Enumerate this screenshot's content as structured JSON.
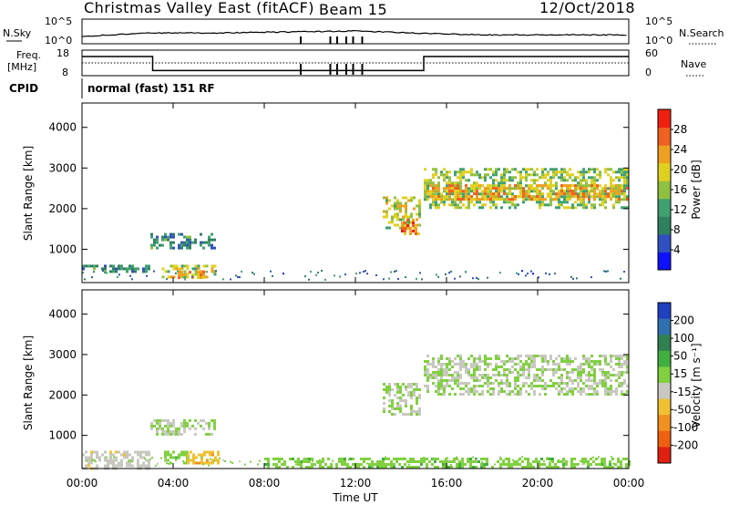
{
  "header": {
    "title": "Christmas Valley East (fitACF)",
    "beam": "Beam 15",
    "date": "12/Oct/2018"
  },
  "noise_panel": {
    "left_label": "N.Sky",
    "right_label": "N.Search",
    "left_ticks": [
      "10^5",
      "10^0"
    ],
    "right_ticks": [
      "10^5",
      "10^0"
    ]
  },
  "freq_panel": {
    "left_label_1": "Freq.",
    "left_label_2": "[MHz]",
    "left_ticks": [
      "18",
      "8"
    ],
    "right_ticks": [
      "60",
      "0"
    ],
    "right_label": "Nave"
  },
  "cpid": {
    "label": "CPID",
    "value": "normal (fast) 151 RF"
  },
  "power_panel": {
    "ylabel": "Slant Range [km]",
    "yticks": [
      "1000",
      "2000",
      "3000",
      "4000"
    ],
    "colorbar_label": "Power [dB]",
    "colorbar_ticks": [
      "4",
      "8",
      "12",
      "16",
      "20",
      "24",
      "28"
    ],
    "colorbar_colors": [
      "#1010ff",
      "#3050c0",
      "#308060",
      "#40a070",
      "#90c040",
      "#e0d020",
      "#f0a020",
      "#f06020",
      "#f02010"
    ]
  },
  "velocity_panel": {
    "ylabel": "Slant Range [km]",
    "yticks": [
      "1000",
      "2000",
      "3000",
      "4000"
    ],
    "colorbar_label": "Velocity [m s⁻¹]",
    "colorbar_ticks": [
      "200",
      "100",
      "50",
      "15",
      "-15",
      "-50",
      "-100",
      "-200"
    ],
    "colorbar_colors": [
      "#2040c0",
      "#3070b0",
      "#308050",
      "#40b040",
      "#80d040",
      "#c8c8c0",
      "#f0c030",
      "#f09020",
      "#f06010",
      "#e02010"
    ]
  },
  "xaxis": {
    "ticks": [
      "00:00",
      "04:00",
      "08:00",
      "12:00",
      "16:00",
      "20:00",
      "00:00"
    ],
    "label": "Time UT"
  },
  "chart_data": [
    {
      "type": "line",
      "title": "Noise (N.Sky / N.Search)",
      "x": [
        0,
        3,
        6,
        9,
        12,
        15,
        18,
        21,
        24
      ],
      "series": [
        {
          "values": [
            1.5,
            2.2,
            2.2,
            2.4,
            2.6,
            2.1,
            1.8,
            1.8,
            1.8
          ]
        }
      ],
      "xlim": [
        0,
        24
      ],
      "yscale": "log"
    },
    {
      "type": "line",
      "title": "Frequency / Nave",
      "x": [
        0,
        3.1,
        3.1,
        15.0,
        15.0,
        24
      ],
      "series": [
        {
          "name": "Freq. [MHz]",
          "values": [
            15.5,
            15.5,
            10,
            10,
            15.5,
            15.5
          ]
        },
        {
          "name": "Nave",
          "values": [
            30,
            30,
            30,
            30,
            30,
            30
          ]
        }
      ],
      "xlim": [
        0,
        24
      ],
      "ylim": [
        8,
        18
      ]
    },
    {
      "type": "heatmap",
      "title": "Power [dB]",
      "xlabel": "Time UT",
      "ylabel": "Slant Range [km]",
      "xlim": [
        0,
        24
      ],
      "ylim": [
        180,
        4600
      ],
      "regions": [
        {
          "t": [
            0.0,
            3.0
          ],
          "r": [
            430,
            620
          ],
          "value": 10
        },
        {
          "t": [
            3.0,
            5.8
          ],
          "r": [
            1020,
            1400
          ],
          "value": 10
        },
        {
          "t": [
            3.5,
            6.0
          ],
          "r": [
            290,
            620
          ],
          "value": 18
        },
        {
          "t": [
            4.2,
            5.4
          ],
          "r": [
            330,
            470
          ],
          "value": 24
        },
        {
          "t": [
            13.2,
            14.8
          ],
          "r": [
            1500,
            2300
          ],
          "value": 18
        },
        {
          "t": [
            14.0,
            14.8
          ],
          "r": [
            1400,
            1750
          ],
          "value": 26
        },
        {
          "t": [
            15.0,
            24.0
          ],
          "r": [
            2000,
            3000
          ],
          "value": 16
        },
        {
          "t": [
            15.0,
            24.0
          ],
          "r": [
            2250,
            2600
          ],
          "value": 22
        }
      ]
    },
    {
      "type": "heatmap",
      "title": "Velocity [m s⁻¹]",
      "xlabel": "Time UT",
      "ylabel": "Slant Range [km]",
      "xlim": [
        0,
        24
      ],
      "ylim": [
        180,
        4600
      ],
      "regions": [
        {
          "t": [
            0.0,
            3.0
          ],
          "r": [
            200,
            620
          ],
          "value": -30
        },
        {
          "t": [
            3.0,
            5.8
          ],
          "r": [
            1020,
            1400
          ],
          "value": 0
        },
        {
          "t": [
            3.6,
            4.6
          ],
          "r": [
            290,
            620
          ],
          "value": 30
        },
        {
          "t": [
            4.6,
            6.0
          ],
          "r": [
            290,
            620
          ],
          "value": -80
        },
        {
          "t": [
            13.2,
            14.8
          ],
          "r": [
            1500,
            2300
          ],
          "value": 0
        },
        {
          "t": [
            15.0,
            24.0
          ],
          "r": [
            2000,
            3000
          ],
          "value": 0
        },
        {
          "t": [
            8.0,
            24.0
          ],
          "r": [
            200,
            450
          ],
          "value": 30
        }
      ]
    }
  ]
}
